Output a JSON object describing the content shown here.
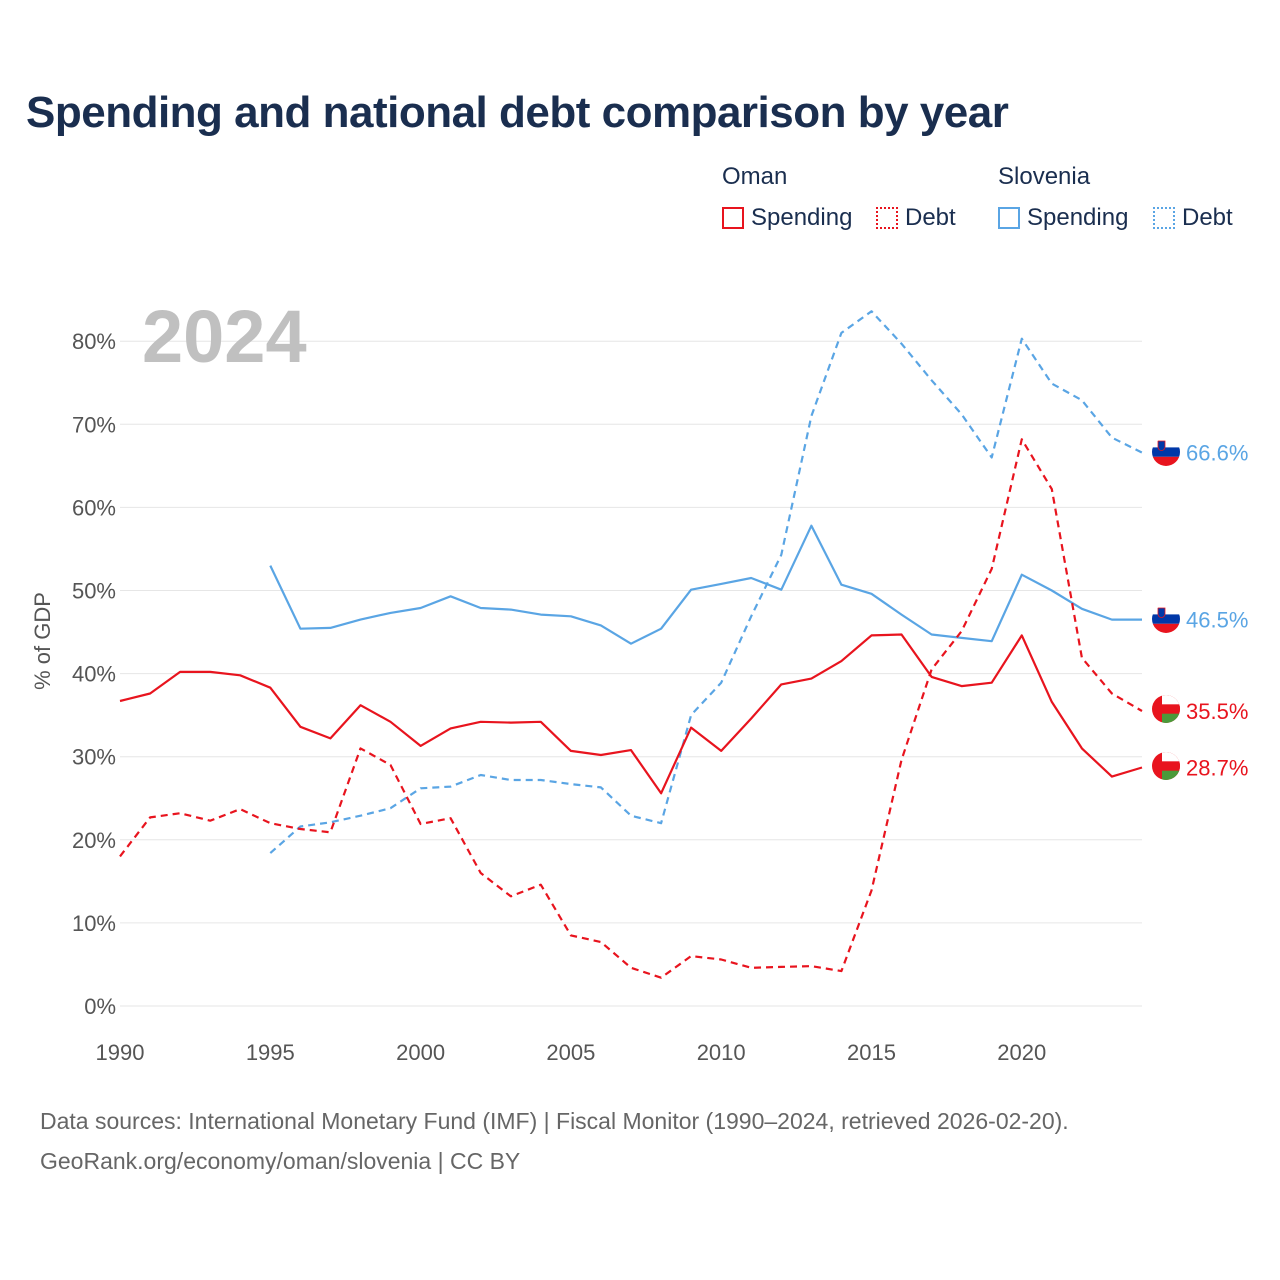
{
  "title": "Spending and national debt comparison by year",
  "legend": {
    "oman": {
      "label": "Oman",
      "spending": "Spending",
      "debt": "Debt"
    },
    "slovenia": {
      "label": "Slovenia",
      "spending": "Spending",
      "debt": "Debt"
    }
  },
  "colors": {
    "oman": "#e8141e",
    "slovenia": "#5aa5e4",
    "grid": "#e6e6e6",
    "year_watermark": "#c0c0c0",
    "axis_text": "#555555"
  },
  "chart_data": {
    "type": "line",
    "year_label": "2024",
    "ylabel": "% of GDP",
    "ylim": [
      0,
      85
    ],
    "xlim": [
      1990,
      2024
    ],
    "y_ticks": [
      0,
      10,
      20,
      30,
      40,
      50,
      60,
      70,
      80
    ],
    "y_tick_labels": [
      "0%",
      "10%",
      "20%",
      "30%",
      "40%",
      "50%",
      "60%",
      "70%",
      "80%"
    ],
    "x_ticks": [
      1990,
      1995,
      2000,
      2005,
      2010,
      2015,
      2020
    ],
    "x_tick_labels": [
      "1990",
      "1995",
      "2000",
      "2005",
      "2010",
      "2015",
      "2020"
    ],
    "series": [
      {
        "name": "Slovenia Debt",
        "country": "slovenia",
        "style": "dashed",
        "end_label": "66.6%",
        "x": [
          1995,
          1996,
          1997,
          1998,
          1999,
          2000,
          2001,
          2002,
          2003,
          2004,
          2005,
          2006,
          2007,
          2008,
          2009,
          2010,
          2011,
          2012,
          2013,
          2014,
          2015,
          2016,
          2017,
          2018,
          2019,
          2020,
          2021,
          2022,
          2023,
          2024
        ],
        "values": [
          18.4,
          21.6,
          22.1,
          22.9,
          23.8,
          26.2,
          26.4,
          27.8,
          27.2,
          27.2,
          26.7,
          26.3,
          22.9,
          22.0,
          35.0,
          38.9,
          46.9,
          54.3,
          71.0,
          81.0,
          83.6,
          79.7,
          75.3,
          71.2,
          66.0,
          80.3,
          74.9,
          72.9,
          68.4,
          66.6
        ]
      },
      {
        "name": "Slovenia Spending",
        "country": "slovenia",
        "style": "solid",
        "end_label": "46.5%",
        "x": [
          1995,
          1996,
          1997,
          1998,
          1999,
          2000,
          2001,
          2002,
          2003,
          2004,
          2005,
          2006,
          2007,
          2008,
          2009,
          2010,
          2011,
          2012,
          2013,
          2014,
          2015,
          2016,
          2017,
          2018,
          2019,
          2020,
          2021,
          2022,
          2023,
          2024
        ],
        "values": [
          53.0,
          45.4,
          45.5,
          46.5,
          47.3,
          47.9,
          49.3,
          47.9,
          47.7,
          47.1,
          46.9,
          45.8,
          43.6,
          45.4,
          50.1,
          50.8,
          51.5,
          50.1,
          57.8,
          50.7,
          49.6,
          47.1,
          44.7,
          44.3,
          43.9,
          51.9,
          50.0,
          47.8,
          46.5,
          46.5
        ]
      },
      {
        "name": "Oman Debt",
        "country": "oman",
        "style": "dashed",
        "end_label": "35.5%",
        "x": [
          1990,
          1991,
          1992,
          1993,
          1994,
          1995,
          1996,
          1997,
          1998,
          1999,
          2000,
          2001,
          2002,
          2003,
          2004,
          2005,
          2006,
          2007,
          2008,
          2009,
          2010,
          2011,
          2012,
          2013,
          2014,
          2015,
          2016,
          2017,
          2018,
          2019,
          2020,
          2021,
          2022,
          2023,
          2024
        ],
        "values": [
          18.0,
          22.7,
          23.2,
          22.3,
          23.7,
          22.0,
          21.3,
          20.9,
          31.0,
          29.0,
          21.9,
          22.6,
          16.0,
          13.2,
          14.6,
          8.5,
          7.7,
          4.6,
          3.4,
          6.0,
          5.6,
          4.6,
          4.7,
          4.8,
          4.2,
          13.9,
          29.6,
          40.5,
          45.1,
          52.6,
          68.2,
          62.2,
          41.9,
          37.6,
          35.5
        ]
      },
      {
        "name": "Oman Spending",
        "country": "oman",
        "style": "solid",
        "end_label": "28.7%",
        "x": [
          1990,
          1991,
          1992,
          1993,
          1994,
          1995,
          1996,
          1997,
          1998,
          1999,
          2000,
          2001,
          2002,
          2003,
          2004,
          2005,
          2006,
          2007,
          2008,
          2009,
          2010,
          2011,
          2012,
          2013,
          2014,
          2015,
          2016,
          2017,
          2018,
          2019,
          2020,
          2021,
          2022,
          2023,
          2024
        ],
        "values": [
          36.7,
          37.6,
          40.2,
          40.2,
          39.8,
          38.3,
          33.6,
          32.2,
          36.2,
          34.2,
          31.3,
          33.4,
          34.2,
          34.1,
          34.2,
          30.7,
          30.2,
          30.8,
          25.6,
          33.5,
          30.7,
          34.6,
          38.7,
          39.4,
          41.5,
          44.6,
          44.7,
          39.6,
          38.5,
          38.9,
          44.6,
          36.6,
          31.0,
          27.6,
          28.7
        ]
      }
    ]
  },
  "footer": {
    "line1": "Data sources: International Monetary Fund (IMF) | Fiscal Monitor (1990–2024, retrieved 2026-02-20).",
    "line2": "GeoRank.org/economy/oman/slovenia | CC BY"
  }
}
